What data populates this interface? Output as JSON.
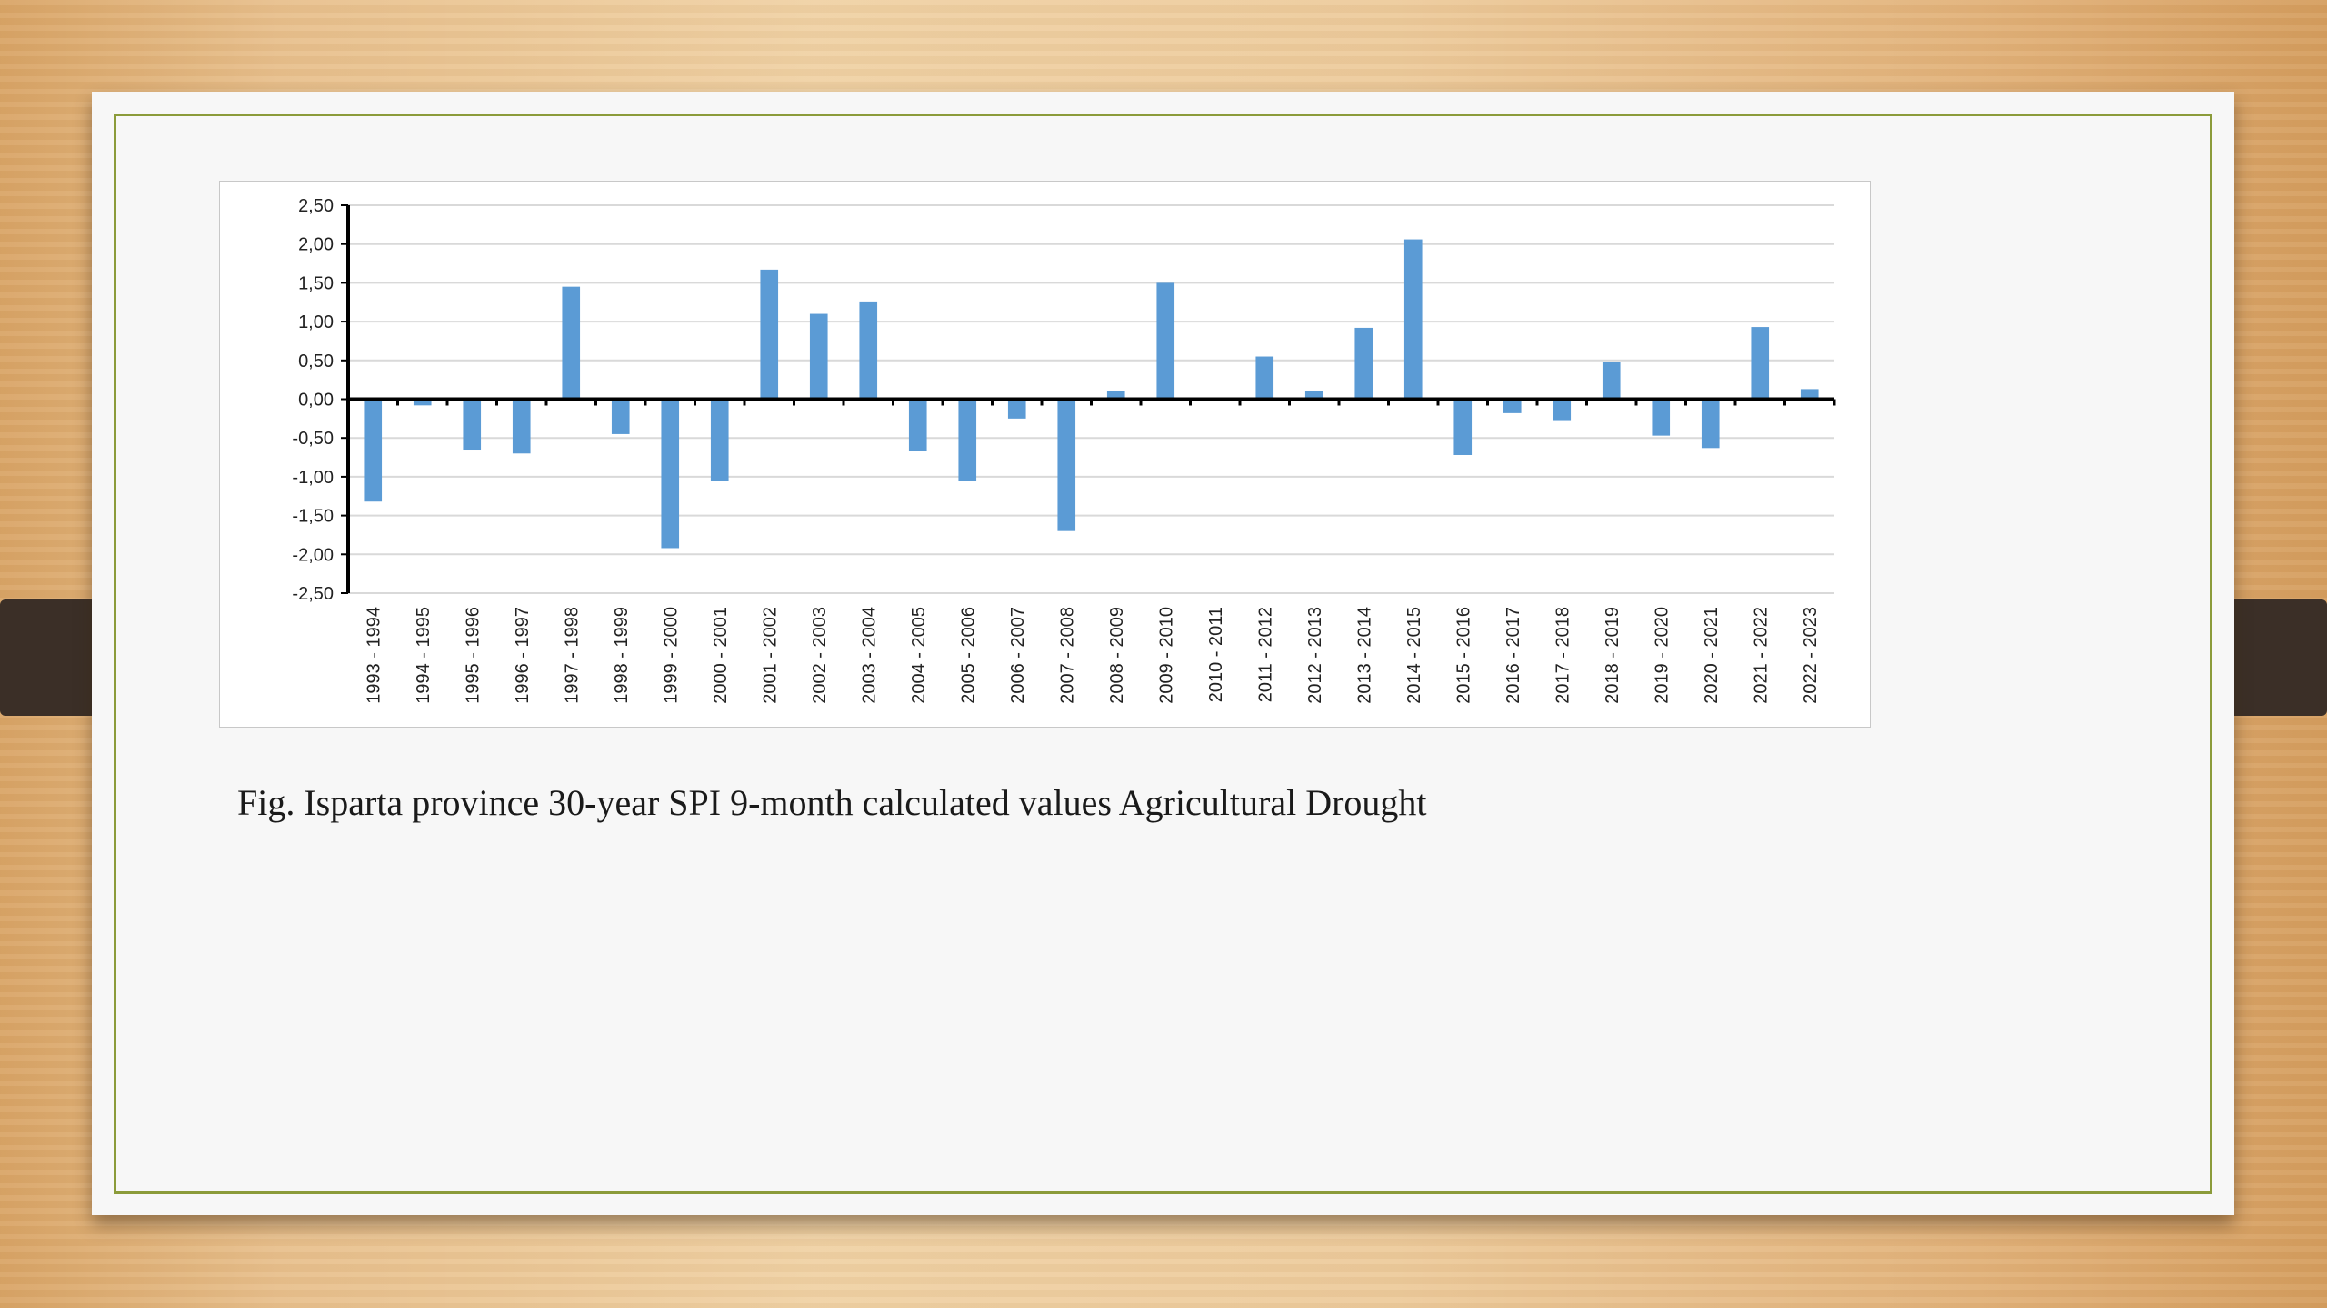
{
  "caption": "Fig. Isparta province 30-year SPI 9-month calculated values Agricultural Drought",
  "colors": {
    "bar": "#5b9bd5",
    "slide_border": "#8b9b3a",
    "gridline": "#d9d9d9"
  },
  "chart_data": {
    "type": "bar",
    "title": "",
    "xlabel": "",
    "ylabel": "",
    "ylim": [
      -2.5,
      2.5
    ],
    "yticks": [
      2.5,
      2.0,
      1.5,
      1.0,
      0.5,
      0.0,
      -0.5,
      -1.0,
      -1.5,
      -2.0,
      -2.5
    ],
    "ytick_labels": [
      "2,50",
      "2,00",
      "1,50",
      "1,00",
      "0,50",
      "0,00",
      "-0,50",
      "-1,00",
      "-1,50",
      "-2,00",
      "-2,50"
    ],
    "grid": true,
    "legend": "none",
    "categories": [
      "1993 - 1994",
      "1994 - 1995",
      "1995 - 1996",
      "1996 - 1997",
      "1997 - 1998",
      "1998 - 1999",
      "1999 - 2000",
      "2000 - 2001",
      "2001 - 2002",
      "2002 - 2003",
      "2003 - 2004",
      "2004 - 2005",
      "2005 - 2006",
      "2006 - 2007",
      "2007 - 2008",
      "2008 - 2009",
      "2009 - 2010",
      "2010 - 2011",
      "2011 - 2012",
      "2012 - 2013",
      "2013 - 2014",
      "2014 - 2015",
      "2015 - 2016",
      "2016 - 2017",
      "2017 - 2018",
      "2018 - 2019",
      "2019 - 2020",
      "2020 - 2021",
      "2021 - 2022",
      "2022 - 2023"
    ],
    "values": [
      -1.32,
      -0.08,
      -0.65,
      -0.7,
      1.45,
      -0.45,
      -1.92,
      -1.05,
      1.67,
      1.1,
      1.26,
      -0.67,
      -1.05,
      -0.25,
      -1.7,
      0.1,
      1.5,
      0.0,
      0.55,
      0.1,
      0.92,
      2.06,
      -0.72,
      -0.18,
      -0.27,
      0.48,
      -0.47,
      -0.63,
      0.93,
      0.13
    ]
  }
}
